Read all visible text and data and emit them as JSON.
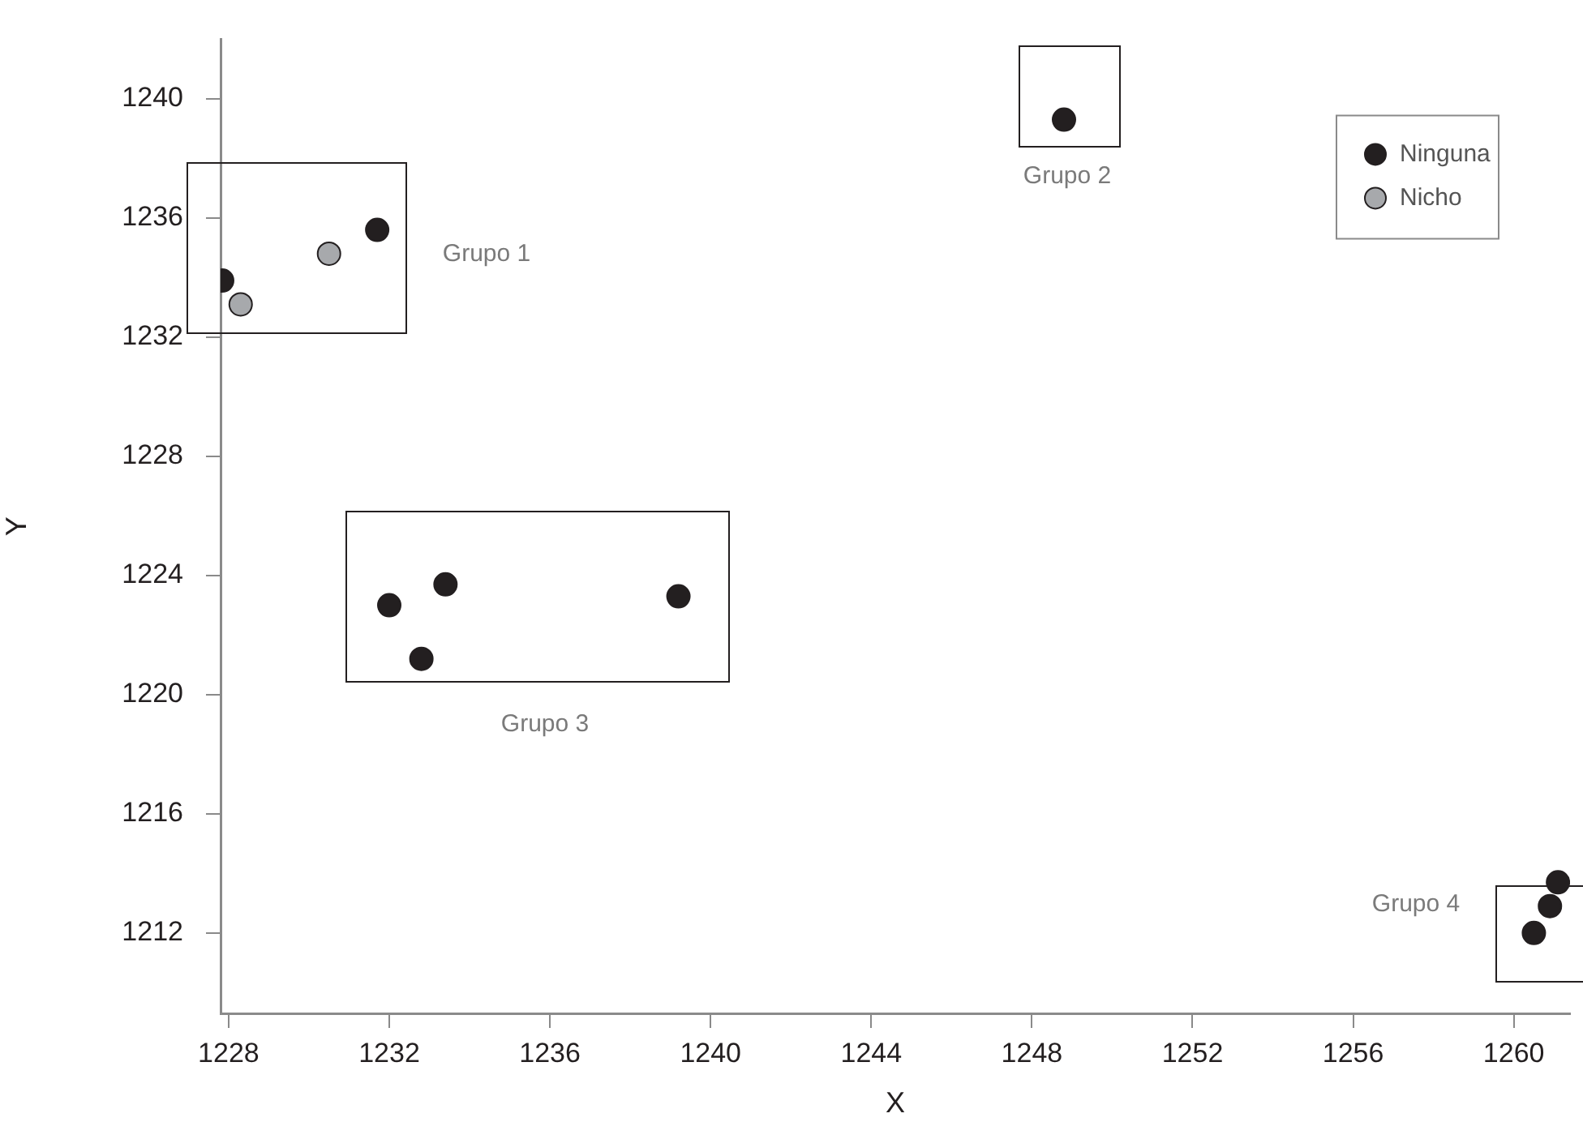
{
  "chart_data": {
    "type": "scatter",
    "xlabel": "X",
    "ylabel": "Y",
    "xlim": [
      1227.8,
      1261.4
    ],
    "ylim": [
      1209.3,
      1242
    ],
    "xticks": [
      1228,
      1232,
      1236,
      1240,
      1244,
      1248,
      1252,
      1256,
      1260
    ],
    "yticks": [
      1212,
      1216,
      1220,
      1224,
      1228,
      1232,
      1236,
      1240
    ],
    "grid": false,
    "legend": "top right",
    "marker": "circle",
    "series": [
      {
        "name": "Ninguna",
        "color": "#231f20",
        "x": [
          1227.84,
          1231.7,
          1248.8,
          1232.0,
          1233.4,
          1232.8,
          1239.2,
          1260.5,
          1260.9,
          1261.1
        ],
        "values": [
          1233.9,
          1235.6,
          1239.3,
          1223.0,
          1223.7,
          1221.2,
          1223.3,
          1212.0,
          1212.9,
          1213.7
        ]
      },
      {
        "name": "Nicho",
        "color": "#a7a9ac",
        "x": [
          1228.3,
          1230.5
        ],
        "values": [
          1233.1,
          1234.8
        ]
      }
    ],
    "annotations": [
      "Grupo 1",
      "Grupo 2",
      "Grupo 3",
      "Grupo 4"
    ]
  }
}
